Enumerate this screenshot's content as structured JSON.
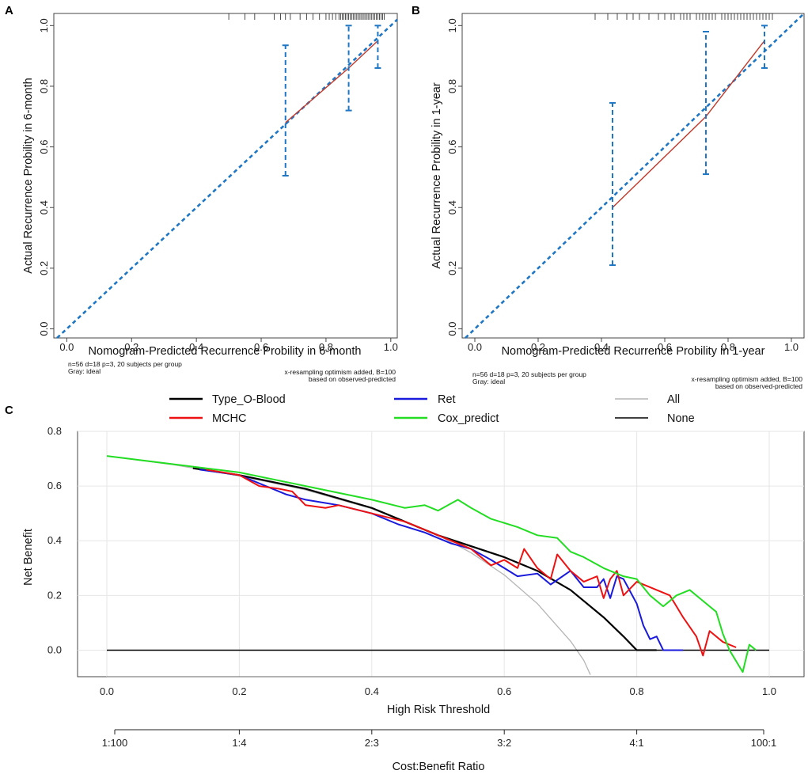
{
  "chart_data": [
    {
      "panel": "A",
      "type": "line",
      "xlabel": "Nomogram-Predicted Recurrence Probility in 6-month",
      "ylabel": "Actual Recurrence Probility in 6-month",
      "xlim": [
        -0.04,
        1.02
      ],
      "ylim": [
        -0.03,
        1.04
      ],
      "ticks": [
        "0.0",
        "0.2",
        "0.4",
        "0.6",
        "0.8",
        "1.0"
      ],
      "tick_values": [
        0,
        0.2,
        0.4,
        0.6,
        0.8,
        1.0
      ],
      "note_left": [
        "n=56 d=18 p=3, 20 subjects per group",
        "Gray: ideal"
      ],
      "note_right": [
        "x-resampling optimism added, B=100",
        "based on observed-predicted"
      ],
      "series": [
        {
          "name": "calibration",
          "x": [
            0.675,
            0.87,
            0.96
          ],
          "y": [
            0.68,
            0.86,
            0.95
          ]
        }
      ],
      "error_bars": [
        {
          "x": 0.675,
          "low": 0.505,
          "high": 0.935
        },
        {
          "x": 0.87,
          "low": 0.72,
          "high": 1.0
        },
        {
          "x": 0.96,
          "low": 0.86,
          "high": 1.0
        }
      ],
      "rug": [
        0.64,
        0.66,
        0.675,
        0.69,
        0.72,
        0.74,
        0.76,
        0.78,
        0.8,
        0.81,
        0.82,
        0.83,
        0.84,
        0.845,
        0.85,
        0.855,
        0.86,
        0.865,
        0.87,
        0.875,
        0.88,
        0.885,
        0.89,
        0.895,
        0.9,
        0.905,
        0.91,
        0.915,
        0.92,
        0.925,
        0.93,
        0.935,
        0.94,
        0.945,
        0.95,
        0.955,
        0.96,
        0.965,
        0.97,
        0.975,
        0.98,
        0.5,
        0.55,
        0.58
      ]
    },
    {
      "panel": "B",
      "type": "line",
      "xlabel": "Nomogram-Predicted Recurrence Probility in 1-year",
      "ylabel": "Actual Recurrence Probility in 1-year",
      "xlim": [
        -0.04,
        1.04
      ],
      "ylim": [
        -0.03,
        1.04
      ],
      "ticks": [
        "0.0",
        "0.2",
        "0.4",
        "0.6",
        "0.8",
        "1.0"
      ],
      "tick_values": [
        0,
        0.2,
        0.4,
        0.6,
        0.8,
        1.0
      ],
      "note_left": [
        "n=56 d=18 p=3, 20 subjects per group",
        "Gray: ideal"
      ],
      "note_right": [
        "x-resampling optimism added, B=100",
        "based on observed-predicted"
      ],
      "series": [
        {
          "name": "calibration",
          "x": [
            0.435,
            0.73,
            0.915
          ],
          "y": [
            0.4,
            0.7,
            0.95
          ]
        }
      ],
      "error_bars": [
        {
          "x": 0.435,
          "low": 0.21,
          "high": 0.745
        },
        {
          "x": 0.73,
          "low": 0.51,
          "high": 0.98
        },
        {
          "x": 0.915,
          "low": 0.86,
          "high": 1.0
        }
      ],
      "rug": [
        0.38,
        0.42,
        0.45,
        0.48,
        0.5,
        0.52,
        0.55,
        0.58,
        0.6,
        0.62,
        0.63,
        0.65,
        0.66,
        0.67,
        0.68,
        0.7,
        0.71,
        0.72,
        0.73,
        0.74,
        0.75,
        0.76,
        0.78,
        0.79,
        0.8,
        0.81,
        0.82,
        0.83,
        0.84,
        0.85,
        0.86,
        0.87,
        0.88,
        0.89,
        0.9,
        0.91,
        0.92,
        0.93,
        0.94
      ]
    },
    {
      "panel": "C",
      "type": "line",
      "xlabel": "High Risk Threshold",
      "ylabel": "Net Benefit",
      "xlim": [
        0,
        1.0
      ],
      "ylim": [
        -0.1,
        0.8
      ],
      "x_ticks": [
        "0.0",
        "0.2",
        "0.4",
        "0.6",
        "0.8",
        "1.0"
      ],
      "x_tick_values": [
        0,
        0.2,
        0.4,
        0.6,
        0.8,
        1.0
      ],
      "y_ticks": [
        "0.0",
        "0.2",
        "0.4",
        "0.6",
        "0.8"
      ],
      "y_tick_values": [
        0,
        0.2,
        0.4,
        0.6,
        0.8
      ],
      "cost_benefit_label": "Cost:Benefit Ratio",
      "cost_benefit_ticks": [
        "1:100",
        "1:4",
        "2:3",
        "3:2",
        "4:1",
        "100:1"
      ],
      "legend": [
        {
          "name": "Type_O-Blood",
          "color": "#000000"
        },
        {
          "name": "Ret",
          "color": "#1a1adc"
        },
        {
          "name": "All",
          "color": "#b5b5b5"
        },
        {
          "name": "MCHC",
          "color": "#ee1111"
        },
        {
          "name": "Cox_predict",
          "color": "#22dd22"
        },
        {
          "name": "None",
          "color": "#000000"
        }
      ],
      "series": [
        {
          "name": "All",
          "color": "#b5b5b5",
          "x": [
            0,
            0.1,
            0.2,
            0.3,
            0.4,
            0.5,
            0.55,
            0.6,
            0.65,
            0.7,
            0.72,
            0.73
          ],
          "y": [
            0.71,
            0.678,
            0.637,
            0.586,
            0.517,
            0.42,
            0.356,
            0.275,
            0.17,
            0.033,
            -0.037,
            -0.09
          ]
        },
        {
          "name": "None",
          "color": "#000000",
          "x": [
            0,
            1.0
          ],
          "y": [
            0,
            0
          ]
        },
        {
          "name": "Type_O-Blood",
          "color": "#000000",
          "x": [
            0.13,
            0.2,
            0.3,
            0.4,
            0.5,
            0.6,
            0.65,
            0.7,
            0.75,
            0.78,
            0.8,
            0.83
          ],
          "y": [
            0.665,
            0.64,
            0.59,
            0.52,
            0.42,
            0.34,
            0.29,
            0.22,
            0.12,
            0.05,
            0.0,
            0.0
          ]
        },
        {
          "name": "Ret",
          "color": "#1a1adc",
          "x": [
            0.14,
            0.2,
            0.23,
            0.27,
            0.3,
            0.35,
            0.4,
            0.44,
            0.48,
            0.5,
            0.52,
            0.55,
            0.58,
            0.6,
            0.62,
            0.65,
            0.67,
            0.7,
            0.72,
            0.74,
            0.75,
            0.76,
            0.77,
            0.78,
            0.8,
            0.81,
            0.82,
            0.83,
            0.84,
            0.87
          ],
          "y": [
            0.66,
            0.64,
            0.61,
            0.57,
            0.55,
            0.53,
            0.5,
            0.46,
            0.43,
            0.41,
            0.39,
            0.37,
            0.33,
            0.3,
            0.27,
            0.28,
            0.24,
            0.29,
            0.23,
            0.23,
            0.26,
            0.19,
            0.27,
            0.26,
            0.17,
            0.09,
            0.04,
            0.05,
            0.0,
            0.0
          ]
        },
        {
          "name": "MCHC",
          "color": "#ee1111",
          "x": [
            0.15,
            0.2,
            0.23,
            0.26,
            0.28,
            0.3,
            0.33,
            0.35,
            0.4,
            0.45,
            0.5,
            0.55,
            0.58,
            0.6,
            0.62,
            0.63,
            0.65,
            0.67,
            0.68,
            0.7,
            0.72,
            0.74,
            0.75,
            0.76,
            0.77,
            0.78,
            0.8,
            0.82,
            0.85,
            0.87,
            0.89,
            0.9,
            0.91,
            0.93,
            0.95
          ],
          "y": [
            0.66,
            0.64,
            0.6,
            0.59,
            0.58,
            0.53,
            0.52,
            0.53,
            0.5,
            0.47,
            0.42,
            0.37,
            0.31,
            0.33,
            0.3,
            0.37,
            0.3,
            0.26,
            0.35,
            0.29,
            0.25,
            0.27,
            0.19,
            0.26,
            0.29,
            0.2,
            0.25,
            0.23,
            0.2,
            0.12,
            0.05,
            -0.02,
            0.07,
            0.03,
            0.01
          ]
        },
        {
          "name": "Cox_predict",
          "color": "#22dd22",
          "x": [
            0,
            0.1,
            0.2,
            0.3,
            0.4,
            0.45,
            0.48,
            0.5,
            0.53,
            0.55,
            0.58,
            0.62,
            0.65,
            0.68,
            0.7,
            0.72,
            0.75,
            0.78,
            0.8,
            0.82,
            0.84,
            0.86,
            0.88,
            0.9,
            0.92,
            0.93,
            0.94,
            0.96,
            0.97,
            0.98
          ],
          "y": [
            0.71,
            0.68,
            0.65,
            0.6,
            0.55,
            0.52,
            0.53,
            0.51,
            0.55,
            0.52,
            0.48,
            0.45,
            0.42,
            0.41,
            0.36,
            0.34,
            0.3,
            0.27,
            0.26,
            0.2,
            0.16,
            0.2,
            0.22,
            0.18,
            0.14,
            0.06,
            0.0,
            -0.08,
            0.02,
            0.0
          ]
        }
      ]
    }
  ]
}
